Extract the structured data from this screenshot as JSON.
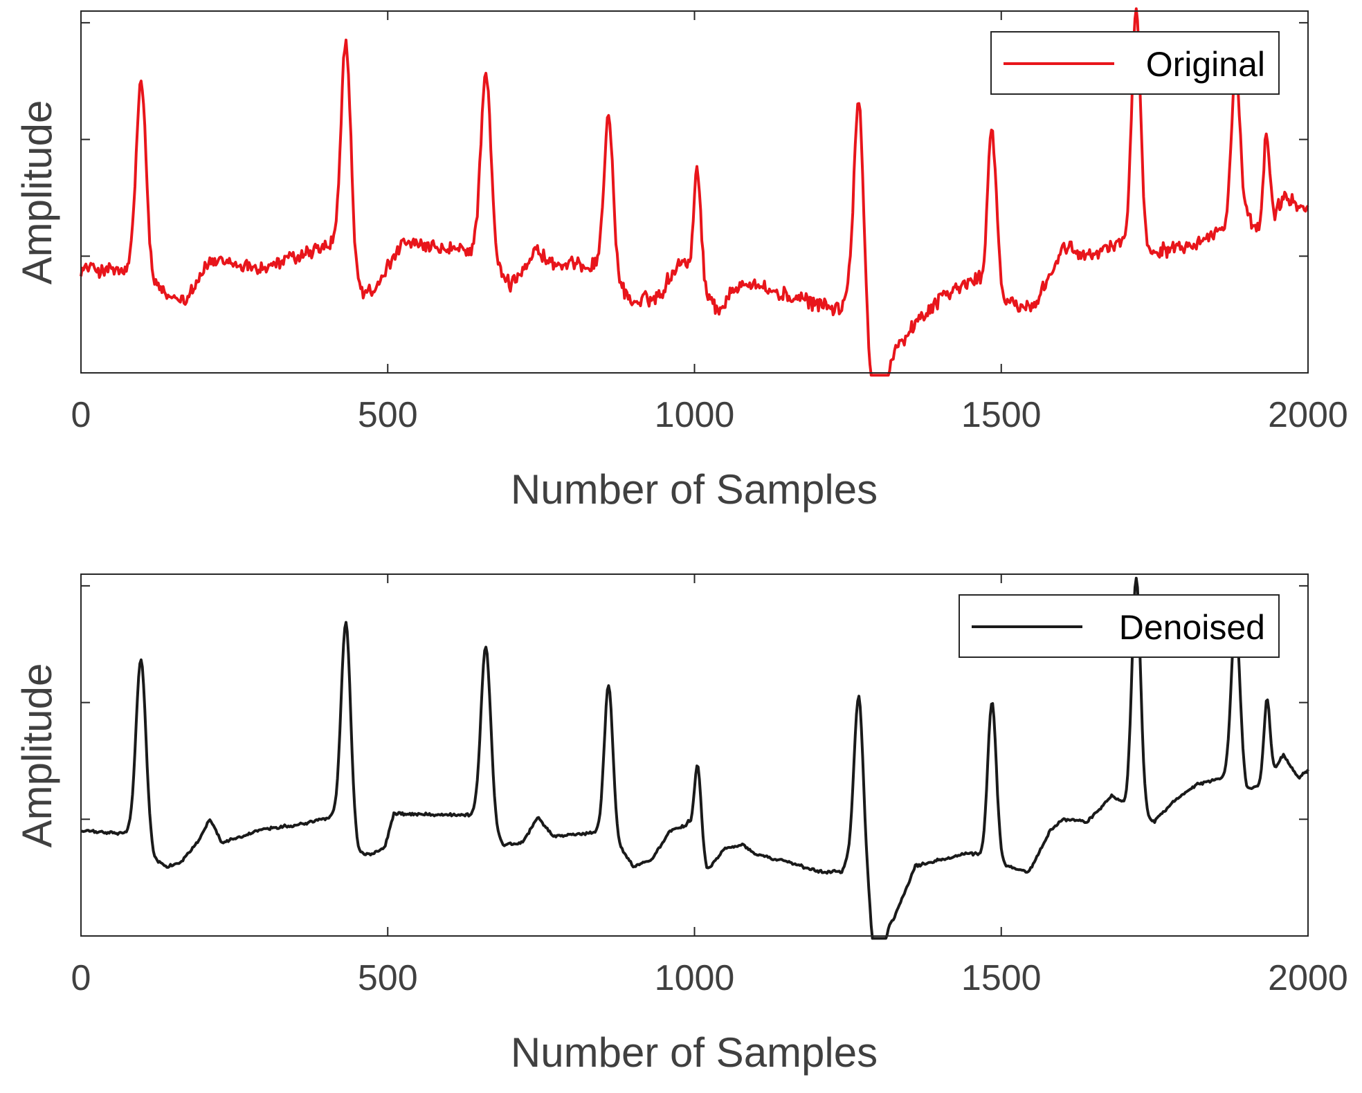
{
  "chart_data": [
    {
      "type": "line",
      "name": "original",
      "xlabel": "Number of Samples",
      "ylabel": "Amplitude",
      "xlim": [
        0,
        2000
      ],
      "ylim": [
        -1.0,
        2.1
      ],
      "xticks": [
        0,
        500,
        1000,
        1500,
        2000
      ],
      "xtick_labels": [
        "0",
        "500",
        "1000",
        "1500",
        "2000"
      ],
      "yticks": [
        -1,
        0,
        1,
        2
      ],
      "grid": false,
      "legend_position": "top-right",
      "series": [
        {
          "name": "Original",
          "color": "#e8151b",
          "noise": 0.075,
          "baseline": [
            [
              0,
              -0.1
            ],
            [
              100,
              -0.15
            ],
            [
              140,
              -0.35
            ],
            [
              170,
              -0.35
            ],
            [
              210,
              -0.05
            ],
            [
              300,
              -0.1
            ],
            [
              410,
              0.1
            ],
            [
              450,
              -0.3
            ],
            [
              480,
              -0.3
            ],
            [
              520,
              0.1
            ],
            [
              600,
              0.05
            ],
            [
              650,
              0.05
            ],
            [
              700,
              -0.25
            ],
            [
              740,
              0.05
            ],
            [
              780,
              -0.1
            ],
            [
              850,
              -0.05
            ],
            [
              900,
              -0.4
            ],
            [
              940,
              -0.35
            ],
            [
              980,
              0.0
            ],
            [
              1010,
              -0.3
            ],
            [
              1040,
              -0.45
            ],
            [
              1080,
              -0.2
            ],
            [
              1150,
              -0.35
            ],
            [
              1240,
              -0.45
            ],
            [
              1260,
              -0.1
            ],
            [
              1290,
              -0.6
            ],
            [
              1310,
              -0.85
            ],
            [
              1340,
              -0.7
            ],
            [
              1400,
              -0.35
            ],
            [
              1460,
              -0.2
            ],
            [
              1510,
              -0.4
            ],
            [
              1550,
              -0.45
            ],
            [
              1600,
              0.05
            ],
            [
              1650,
              0.0
            ],
            [
              1700,
              0.15
            ],
            [
              1740,
              0.05
            ],
            [
              1800,
              0.1
            ],
            [
              1900,
              0.3
            ],
            [
              1930,
              0.15
            ],
            [
              1960,
              0.5
            ],
            [
              2000,
              0.4
            ]
          ],
          "peaks": [
            [
              98,
              1.65,
              8
            ],
            [
              432,
              1.95,
              8
            ],
            [
              660,
              1.6,
              8
            ],
            [
              860,
              1.35,
              7
            ],
            [
              1005,
              1.0,
              6
            ],
            [
              1268,
              1.55,
              7
            ],
            [
              1485,
              1.4,
              7
            ],
            [
              1720,
              2.05,
              7
            ],
            [
              1882,
              1.35,
              7
            ],
            [
              1933,
              1.05,
              5
            ]
          ],
          "dips": [
            [
              1298,
              -0.95,
              10
            ],
            [
              1935,
              -0.25,
              3
            ]
          ]
        }
      ]
    },
    {
      "type": "line",
      "name": "denoised",
      "xlabel": "Number of Samples",
      "ylabel": "Amplitude",
      "xlim": [
        0,
        2000
      ],
      "ylim": [
        -1.0,
        2.1
      ],
      "xticks": [
        0,
        500,
        1000,
        1500,
        2000
      ],
      "xtick_labels": [
        "0",
        "500",
        "1000",
        "1500",
        "2000"
      ],
      "yticks": [
        -1,
        0,
        1,
        2
      ],
      "grid": false,
      "legend_position": "top-right",
      "series": [
        {
          "name": "Denoised",
          "color": "#1a1a1a",
          "noise": 0.014,
          "baseline": [
            [
              0,
              -0.1
            ],
            [
              60,
              -0.12
            ],
            [
              90,
              -0.12
            ],
            [
              120,
              -0.35
            ],
            [
              140,
              -0.4
            ],
            [
              160,
              -0.38
            ],
            [
              190,
              -0.2
            ],
            [
              210,
              0.0
            ],
            [
              230,
              -0.2
            ],
            [
              260,
              -0.15
            ],
            [
              300,
              -0.08
            ],
            [
              360,
              -0.04
            ],
            [
              410,
              0.02
            ],
            [
              440,
              -0.3
            ],
            [
              470,
              -0.3
            ],
            [
              495,
              -0.25
            ],
            [
              510,
              0.05
            ],
            [
              600,
              0.04
            ],
            [
              640,
              0.03
            ],
            [
              690,
              -0.22
            ],
            [
              720,
              -0.2
            ],
            [
              745,
              0.02
            ],
            [
              770,
              -0.15
            ],
            [
              860,
              -0.1
            ],
            [
              900,
              -0.4
            ],
            [
              930,
              -0.35
            ],
            [
              960,
              -0.1
            ],
            [
              990,
              -0.05
            ],
            [
              1000,
              -0.3
            ],
            [
              1020,
              -0.45
            ],
            [
              1050,
              -0.25
            ],
            [
              1080,
              -0.22
            ],
            [
              1100,
              -0.3
            ],
            [
              1160,
              -0.38
            ],
            [
              1200,
              -0.45
            ],
            [
              1240,
              -0.45
            ],
            [
              1260,
              -0.2
            ],
            [
              1290,
              -0.6
            ],
            [
              1305,
              -0.9
            ],
            [
              1325,
              -0.85
            ],
            [
              1360,
              -0.4
            ],
            [
              1400,
              -0.35
            ],
            [
              1440,
              -0.3
            ],
            [
              1460,
              -0.3
            ],
            [
              1510,
              -0.4
            ],
            [
              1545,
              -0.45
            ],
            [
              1580,
              -0.1
            ],
            [
              1600,
              0.0
            ],
            [
              1640,
              -0.02
            ],
            [
              1680,
              0.2
            ],
            [
              1710,
              0.1
            ],
            [
              1750,
              -0.02
            ],
            [
              1780,
              0.15
            ],
            [
              1820,
              0.3
            ],
            [
              1860,
              0.35
            ],
            [
              1880,
              0.4
            ],
            [
              1900,
              0.25
            ],
            [
              1930,
              0.3
            ],
            [
              1960,
              0.55
            ],
            [
              1985,
              0.35
            ],
            [
              2000,
              0.42
            ]
          ],
          "peaks": [
            [
              98,
              1.55,
              8
            ],
            [
              432,
              1.9,
              8
            ],
            [
              660,
              1.55,
              8
            ],
            [
              860,
              1.25,
              7
            ],
            [
              1005,
              0.8,
              6
            ],
            [
              1268,
              1.35,
              7
            ],
            [
              1485,
              1.35,
              7
            ],
            [
              1720,
              2.0,
              7
            ],
            [
              1882,
              1.35,
              7
            ],
            [
              1933,
              0.7,
              5
            ]
          ],
          "dips": [
            [
              1298,
              -0.8,
              8
            ]
          ]
        }
      ]
    }
  ]
}
